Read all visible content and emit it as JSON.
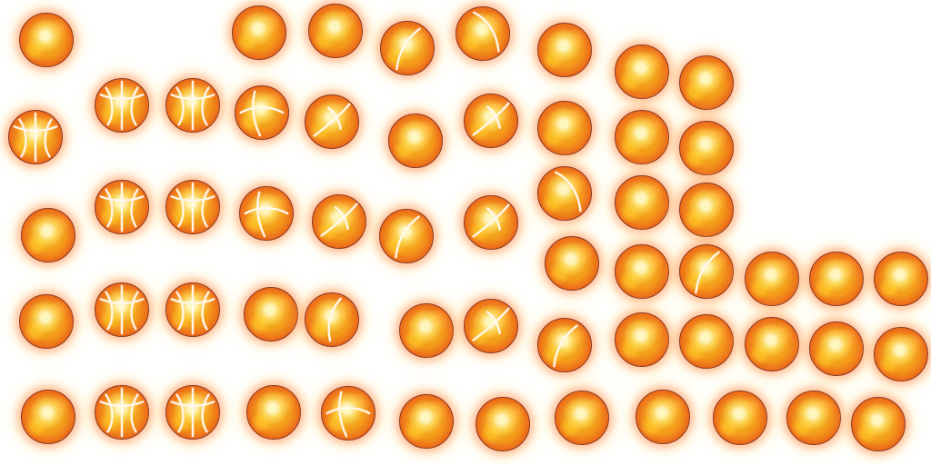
{
  "sheet": {
    "background": "#ffffff",
    "sprite_name": "flaming-basketball",
    "colors": {
      "outer": "#d63418",
      "mid": "#f39a1a",
      "core": "#f6b81c",
      "highlight": "#fffac8",
      "seam": "#fff8ef",
      "glow": "#ff6e3c"
    },
    "sprite_count": 55
  }
}
